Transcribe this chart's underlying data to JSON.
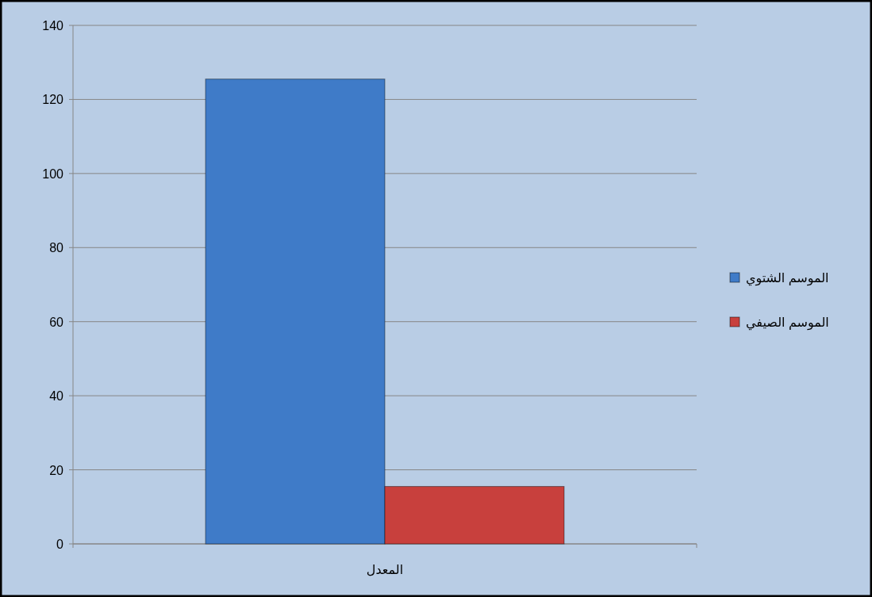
{
  "chart_data": {
    "type": "bar",
    "categories": [
      "المعدل"
    ],
    "series": [
      {
        "name": "الموسم الشتوي",
        "color": "#3f7bc8",
        "values": [
          125.5
        ]
      },
      {
        "name": "الموسم الصيفي",
        "color": "#c8403d",
        "values": [
          15.5
        ]
      }
    ],
    "ylim": [
      0,
      140
    ],
    "yticks": [
      0,
      20,
      40,
      60,
      80,
      100,
      120,
      140
    ],
    "grid": "y",
    "legend": "right"
  }
}
